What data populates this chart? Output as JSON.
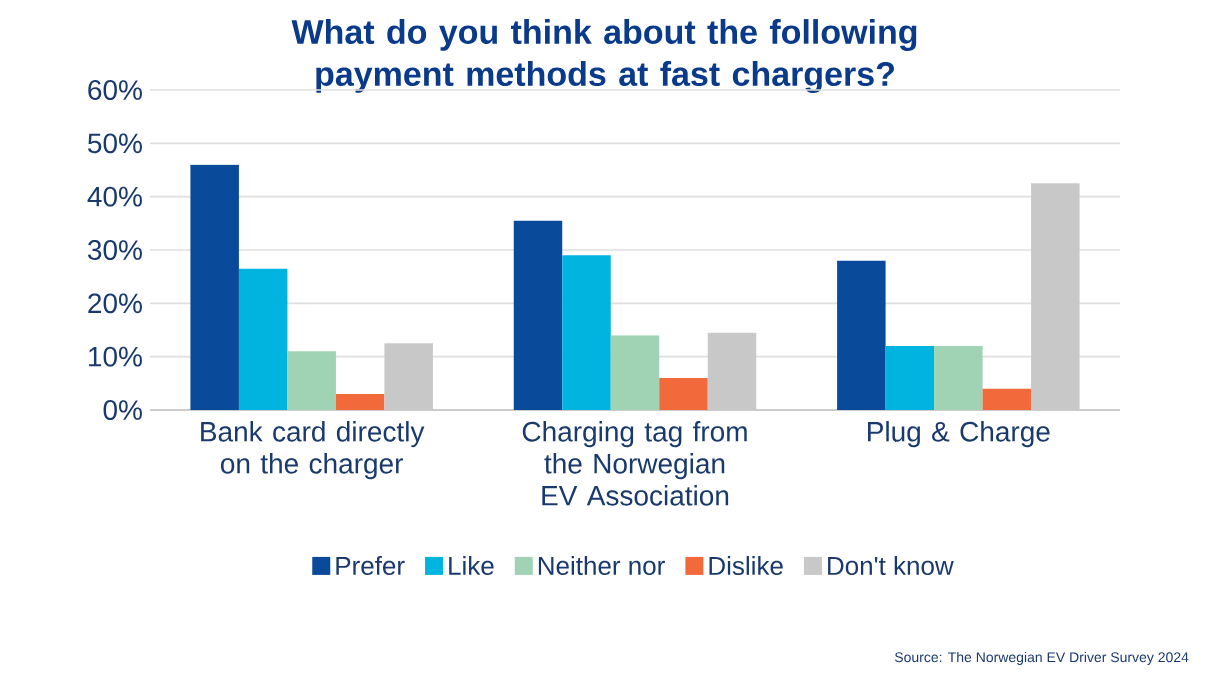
{
  "chart_data": {
    "type": "bar",
    "title": "What do you think about the following payment methods at fast chargers?",
    "categories": [
      "Bank card directly on the charger",
      "Charging tag from the Norwegian EV Association",
      "Plug & Charge"
    ],
    "series": [
      {
        "name": "Prefer",
        "color": "#0a4a9a",
        "values": [
          46,
          35.5,
          28
        ]
      },
      {
        "name": "Like",
        "color": "#00b4e0",
        "values": [
          26.5,
          29,
          12
        ]
      },
      {
        "name": "Neither nor",
        "color": "#a0d2b4",
        "values": [
          11,
          14,
          12
        ]
      },
      {
        "name": "Dislike",
        "color": "#f26a3c",
        "values": [
          3,
          6,
          4
        ]
      },
      {
        "name": "Don't know",
        "color": "#c8c8c8",
        "values": [
          12.5,
          14.5,
          42.5
        ]
      }
    ],
    "ylim": [
      0,
      60
    ],
    "yticks": [
      {
        "value": 0,
        "label": "0%"
      },
      {
        "value": 10,
        "label": "10%"
      },
      {
        "value": 20,
        "label": "20%"
      },
      {
        "value": 30,
        "label": "30%"
      },
      {
        "value": 40,
        "label": "40%"
      },
      {
        "value": 50,
        "label": "50%"
      },
      {
        "value": 60,
        "label": "60%"
      }
    ],
    "grid": "y",
    "legend": "bottom",
    "annotations": [
      "Source: The Norwegian EV Driver Survey 2024"
    ]
  }
}
